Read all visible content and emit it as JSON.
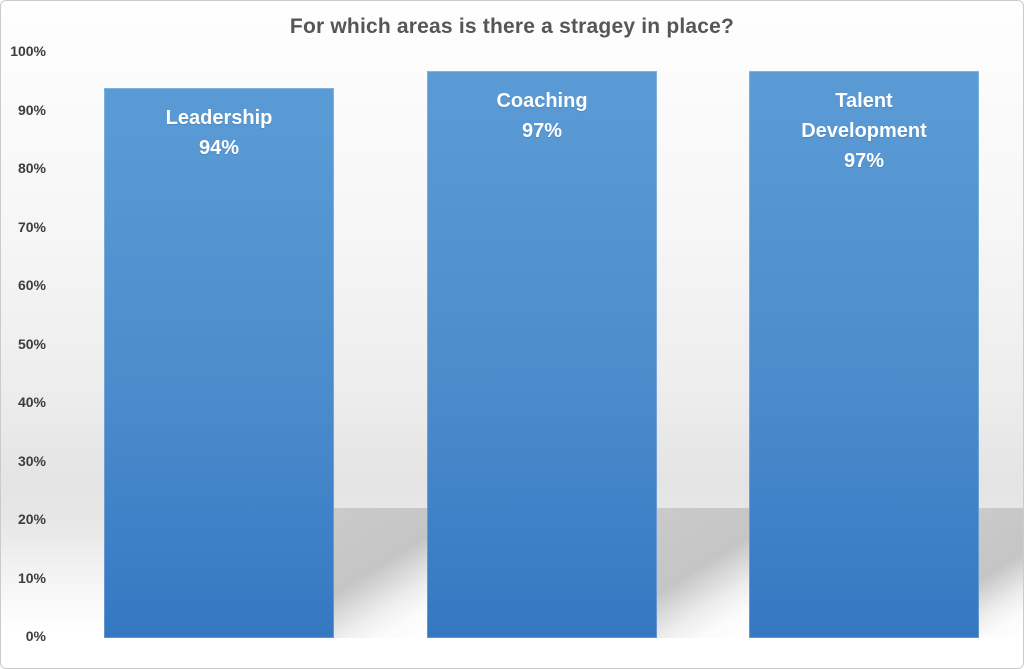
{
  "window": {
    "background": "#ffffff",
    "border_color": "#cbcbcb"
  },
  "chart_data": {
    "type": "bar",
    "title": "For which areas is there a stragey in place?",
    "categories": [
      "Leadership",
      "Coaching",
      "Talent Development"
    ],
    "values": [
      94,
      97,
      97
    ],
    "value_labels": [
      "94%",
      "97%",
      "97%"
    ],
    "xlabel": "",
    "ylabel": "",
    "ylim": [
      0,
      100
    ],
    "ytick_step": 10,
    "ytick_labels": [
      "0%",
      "10%",
      "20%",
      "30%",
      "40%",
      "50%",
      "60%",
      "70%",
      "80%",
      "90%",
      "100%"
    ],
    "grid": false,
    "legend": false,
    "colors": {
      "bar_top": "#5b9bd5",
      "bar_bottom": "#3478c2",
      "bar_label_text": "#ffffff",
      "title_text": "#565656",
      "tick_text": "#3d3d3d",
      "floor_shadow": "#c5c5c5"
    }
  }
}
